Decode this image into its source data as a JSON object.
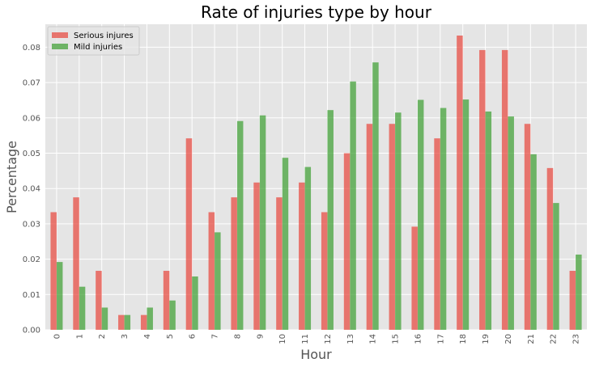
{
  "chart_data": {
    "type": "bar",
    "title": "Rate of injuries type by hour",
    "xlabel": "Hour",
    "ylabel": "Percentage",
    "categories": [
      "0",
      "1",
      "2",
      "3",
      "4",
      "5",
      "6",
      "7",
      "8",
      "9",
      "10",
      "11",
      "12",
      "13",
      "14",
      "15",
      "16",
      "17",
      "18",
      "19",
      "20",
      "21",
      "22",
      "23"
    ],
    "series": [
      {
        "name": "Serious injures",
        "color": "#e8443a",
        "values": [
          0.0333,
          0.0375,
          0.0167,
          0.0042,
          0.0042,
          0.0167,
          0.0542,
          0.0333,
          0.0375,
          0.0417,
          0.0375,
          0.0417,
          0.0333,
          0.05,
          0.0583,
          0.0583,
          0.0292,
          0.0542,
          0.0833,
          0.0792,
          0.0792,
          0.0583,
          0.0458,
          0.0167
        ]
      },
      {
        "name": "Mild injuries",
        "color": "#3a9e2f",
        "values": [
          0.0192,
          0.0122,
          0.0063,
          0.0042,
          0.0063,
          0.0083,
          0.0151,
          0.0276,
          0.0591,
          0.0607,
          0.0487,
          0.0461,
          0.0622,
          0.0703,
          0.0757,
          0.0615,
          0.0651,
          0.0628,
          0.0652,
          0.0618,
          0.0604,
          0.0497,
          0.0359,
          0.0213
        ]
      }
    ],
    "ylim": [
      0,
      0.0865
    ],
    "yticks": [
      "0.00",
      "0.01",
      "0.02",
      "0.03",
      "0.04",
      "0.05",
      "0.06",
      "0.07",
      "0.08"
    ],
    "ytick_values": [
      0,
      0.01,
      0.02,
      0.03,
      0.04,
      0.05,
      0.06,
      0.07,
      0.08
    ],
    "grid": true,
    "legend_position": "top-left",
    "background": "#e5e5e5"
  }
}
